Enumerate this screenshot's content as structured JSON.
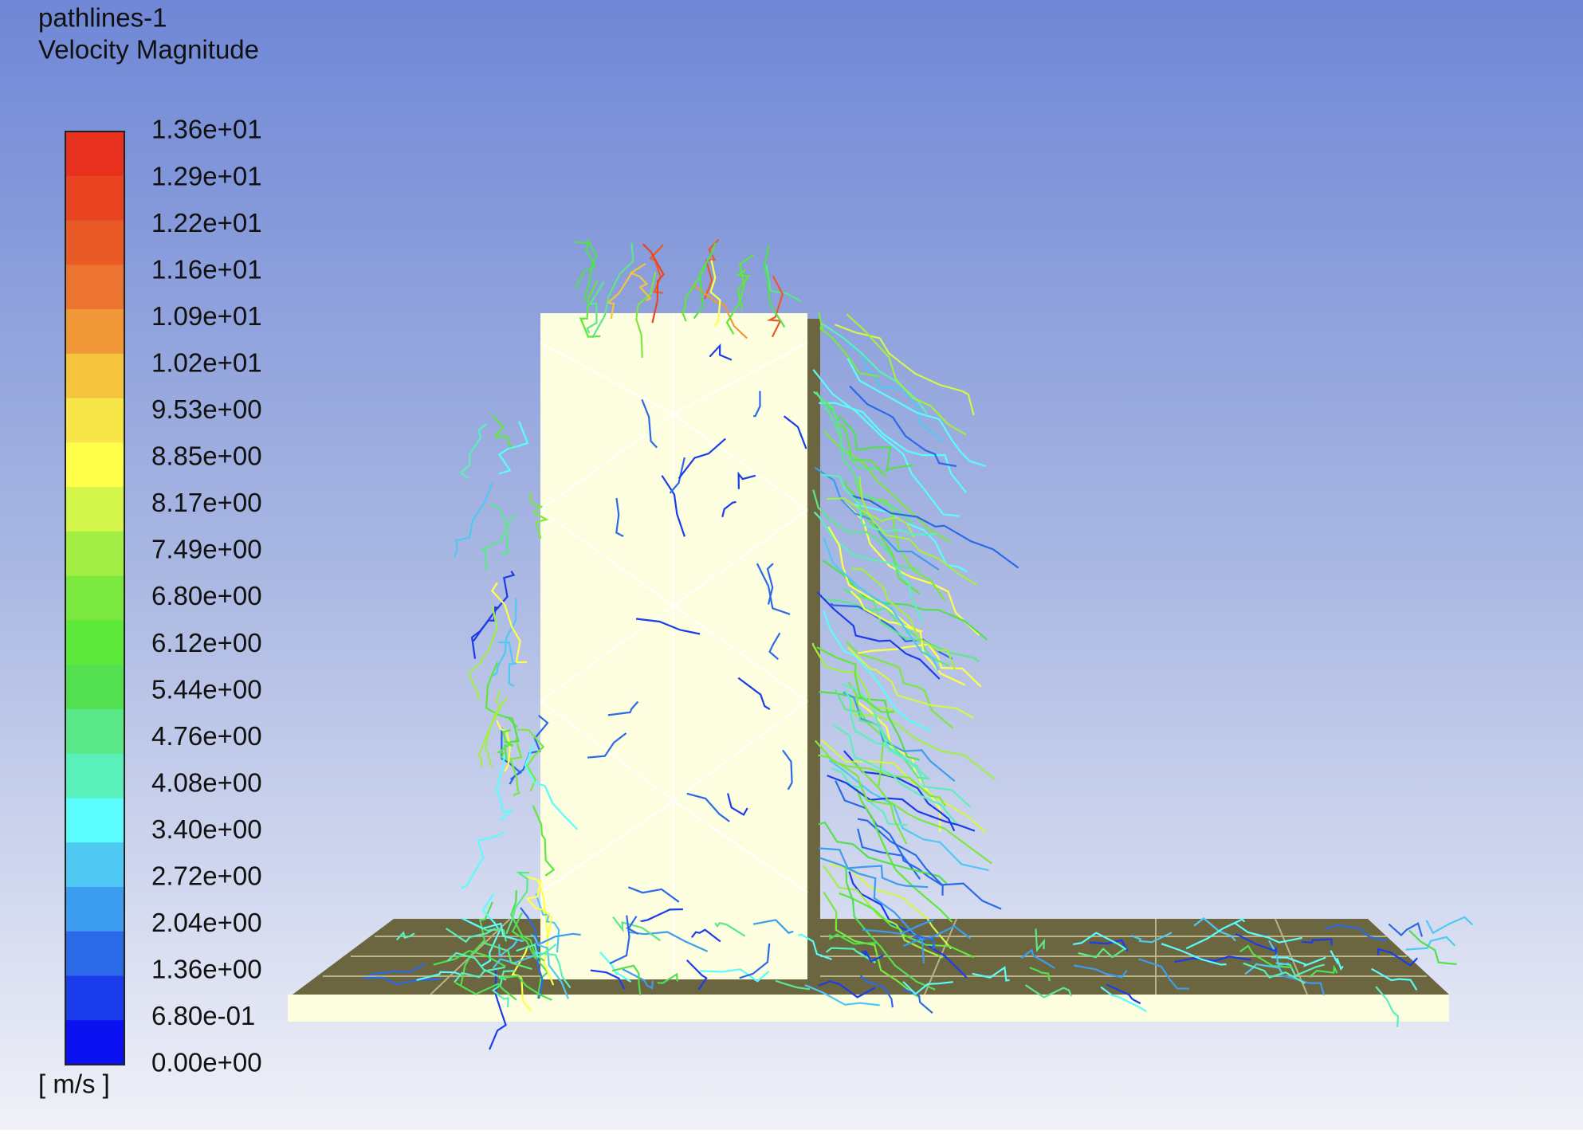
{
  "header": {
    "title": "pathlines-1",
    "subtitle": "Velocity Magnitude"
  },
  "colorbar": {
    "labels": [
      "1.36e+01",
      "1.29e+01",
      "1.22e+01",
      "1.16e+01",
      "1.09e+01",
      "1.02e+01",
      "9.53e+00",
      "8.85e+00",
      "8.17e+00",
      "7.49e+00",
      "6.80e+00",
      "6.12e+00",
      "5.44e+00",
      "4.76e+00",
      "4.08e+00",
      "3.40e+00",
      "2.72e+00",
      "2.04e+00",
      "1.36e+00",
      "6.80e-01",
      "0.00e+00"
    ],
    "colors": [
      "#e8301e",
      "#e84422",
      "#ea5a26",
      "#ec7430",
      "#f09838",
      "#f5c43e",
      "#f8e548",
      "#ffff4a",
      "#d4f54a",
      "#a2ee44",
      "#7ae83e",
      "#5ee83a",
      "#52e050",
      "#5ae888",
      "#5af0bc",
      "#5afcfc",
      "#50c8f4",
      "#3c9cf0",
      "#2a6ae8",
      "#1a3cec",
      "#0a10f0"
    ],
    "unit": "[ m/s ]"
  }
}
